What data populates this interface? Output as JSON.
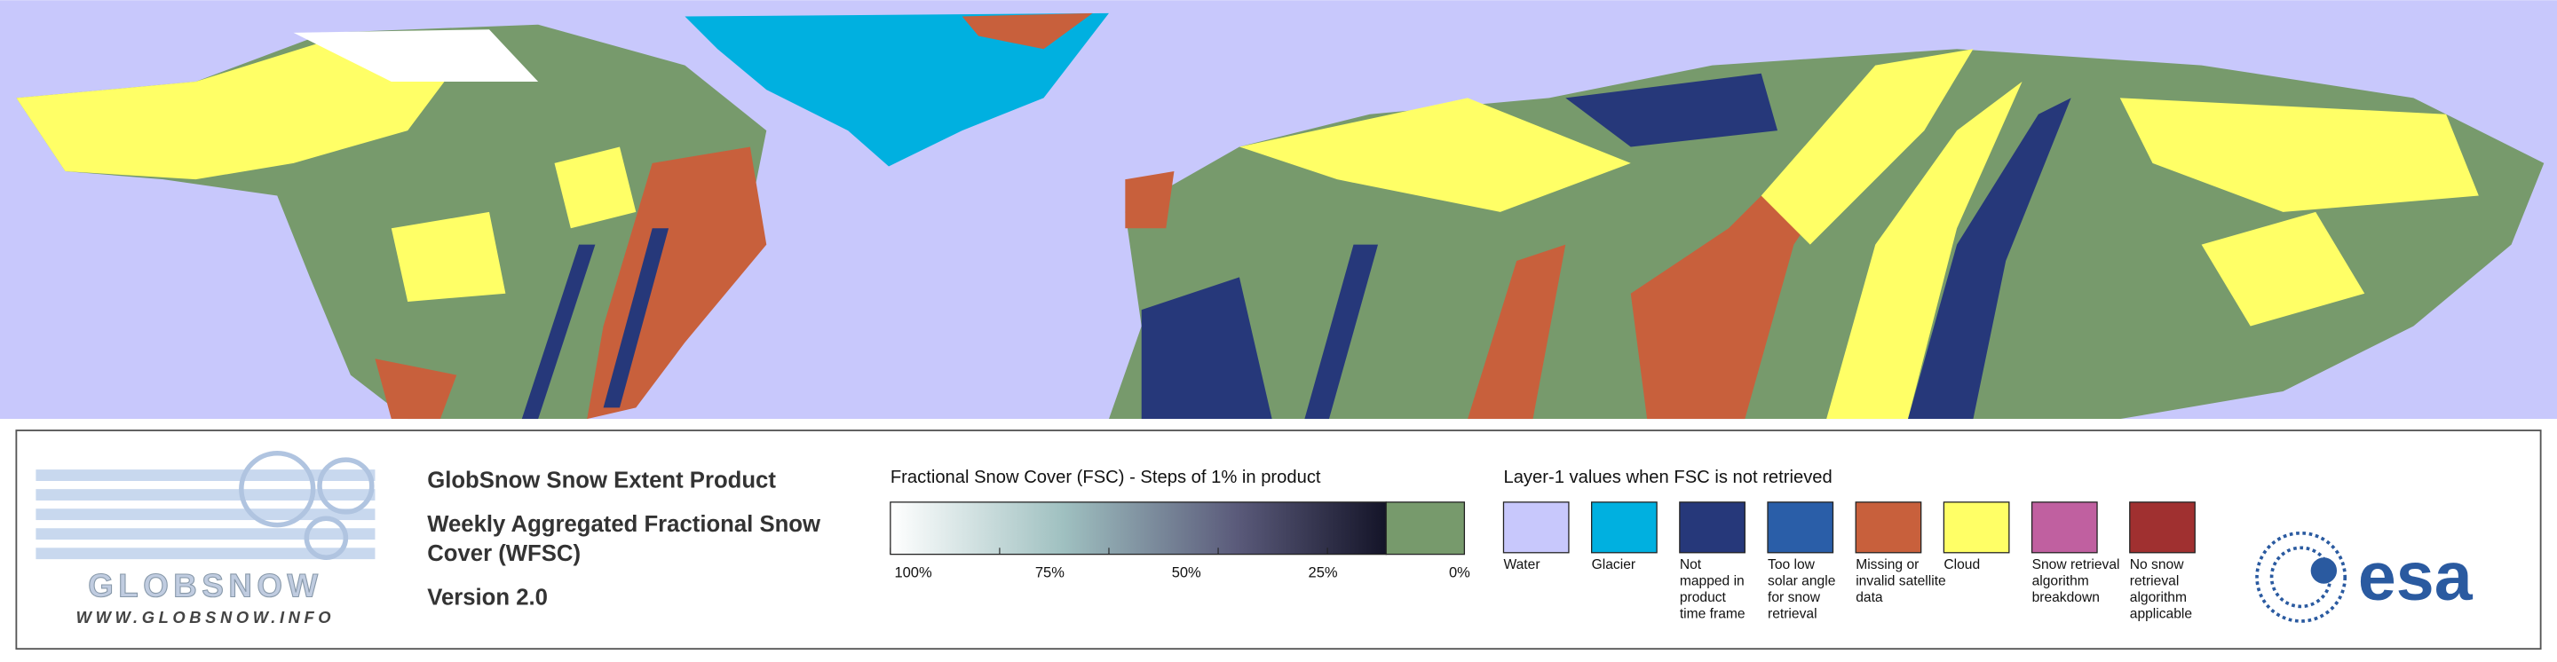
{
  "logo": {
    "name": "GLOBSNOW",
    "url": "WWW.GLOBSNOW.INFO"
  },
  "product": {
    "title": "GlobSnow Snow Extent Product",
    "subtitle_lines": [
      "Weekly Aggregated Fractional Snow",
      "Cover (WFSC)"
    ],
    "version": "Version 2.0"
  },
  "fsc_legend": {
    "title": "Fractional Snow Cover (FSC) - Steps of 1% in product",
    "tick_labels": [
      "100%",
      "75%",
      "50%",
      "25%",
      "0%"
    ]
  },
  "layer1_legend": {
    "title": "Layer-1 values when FSC is not retrieved",
    "items": [
      {
        "color": "#c8c8fc",
        "lines": [
          "Water"
        ]
      },
      {
        "color": "#00b0e0",
        "lines": [
          "Glacier"
        ]
      },
      {
        "color": "#26387a",
        "lines": [
          "Not",
          "mapped in",
          "product",
          "time frame"
        ]
      },
      {
        "color": "#2a5ea8",
        "lines": [
          "Too low",
          "solar angle",
          "for snow",
          "retrieval"
        ]
      },
      {
        "color": "#c8603c",
        "lines": [
          "Missing or",
          "invalid satellite",
          "data"
        ]
      },
      {
        "color": "#ffff66",
        "lines": [
          "Cloud"
        ]
      },
      {
        "color": "#c060a0",
        "lines": [
          "Snow retrieval",
          "algorithm",
          "breakdown"
        ]
      },
      {
        "color": "#a03030",
        "lines": [
          "No snow",
          "retrieval",
          "algorithm",
          "applicable"
        ]
      }
    ]
  },
  "agency_logo": "esa"
}
